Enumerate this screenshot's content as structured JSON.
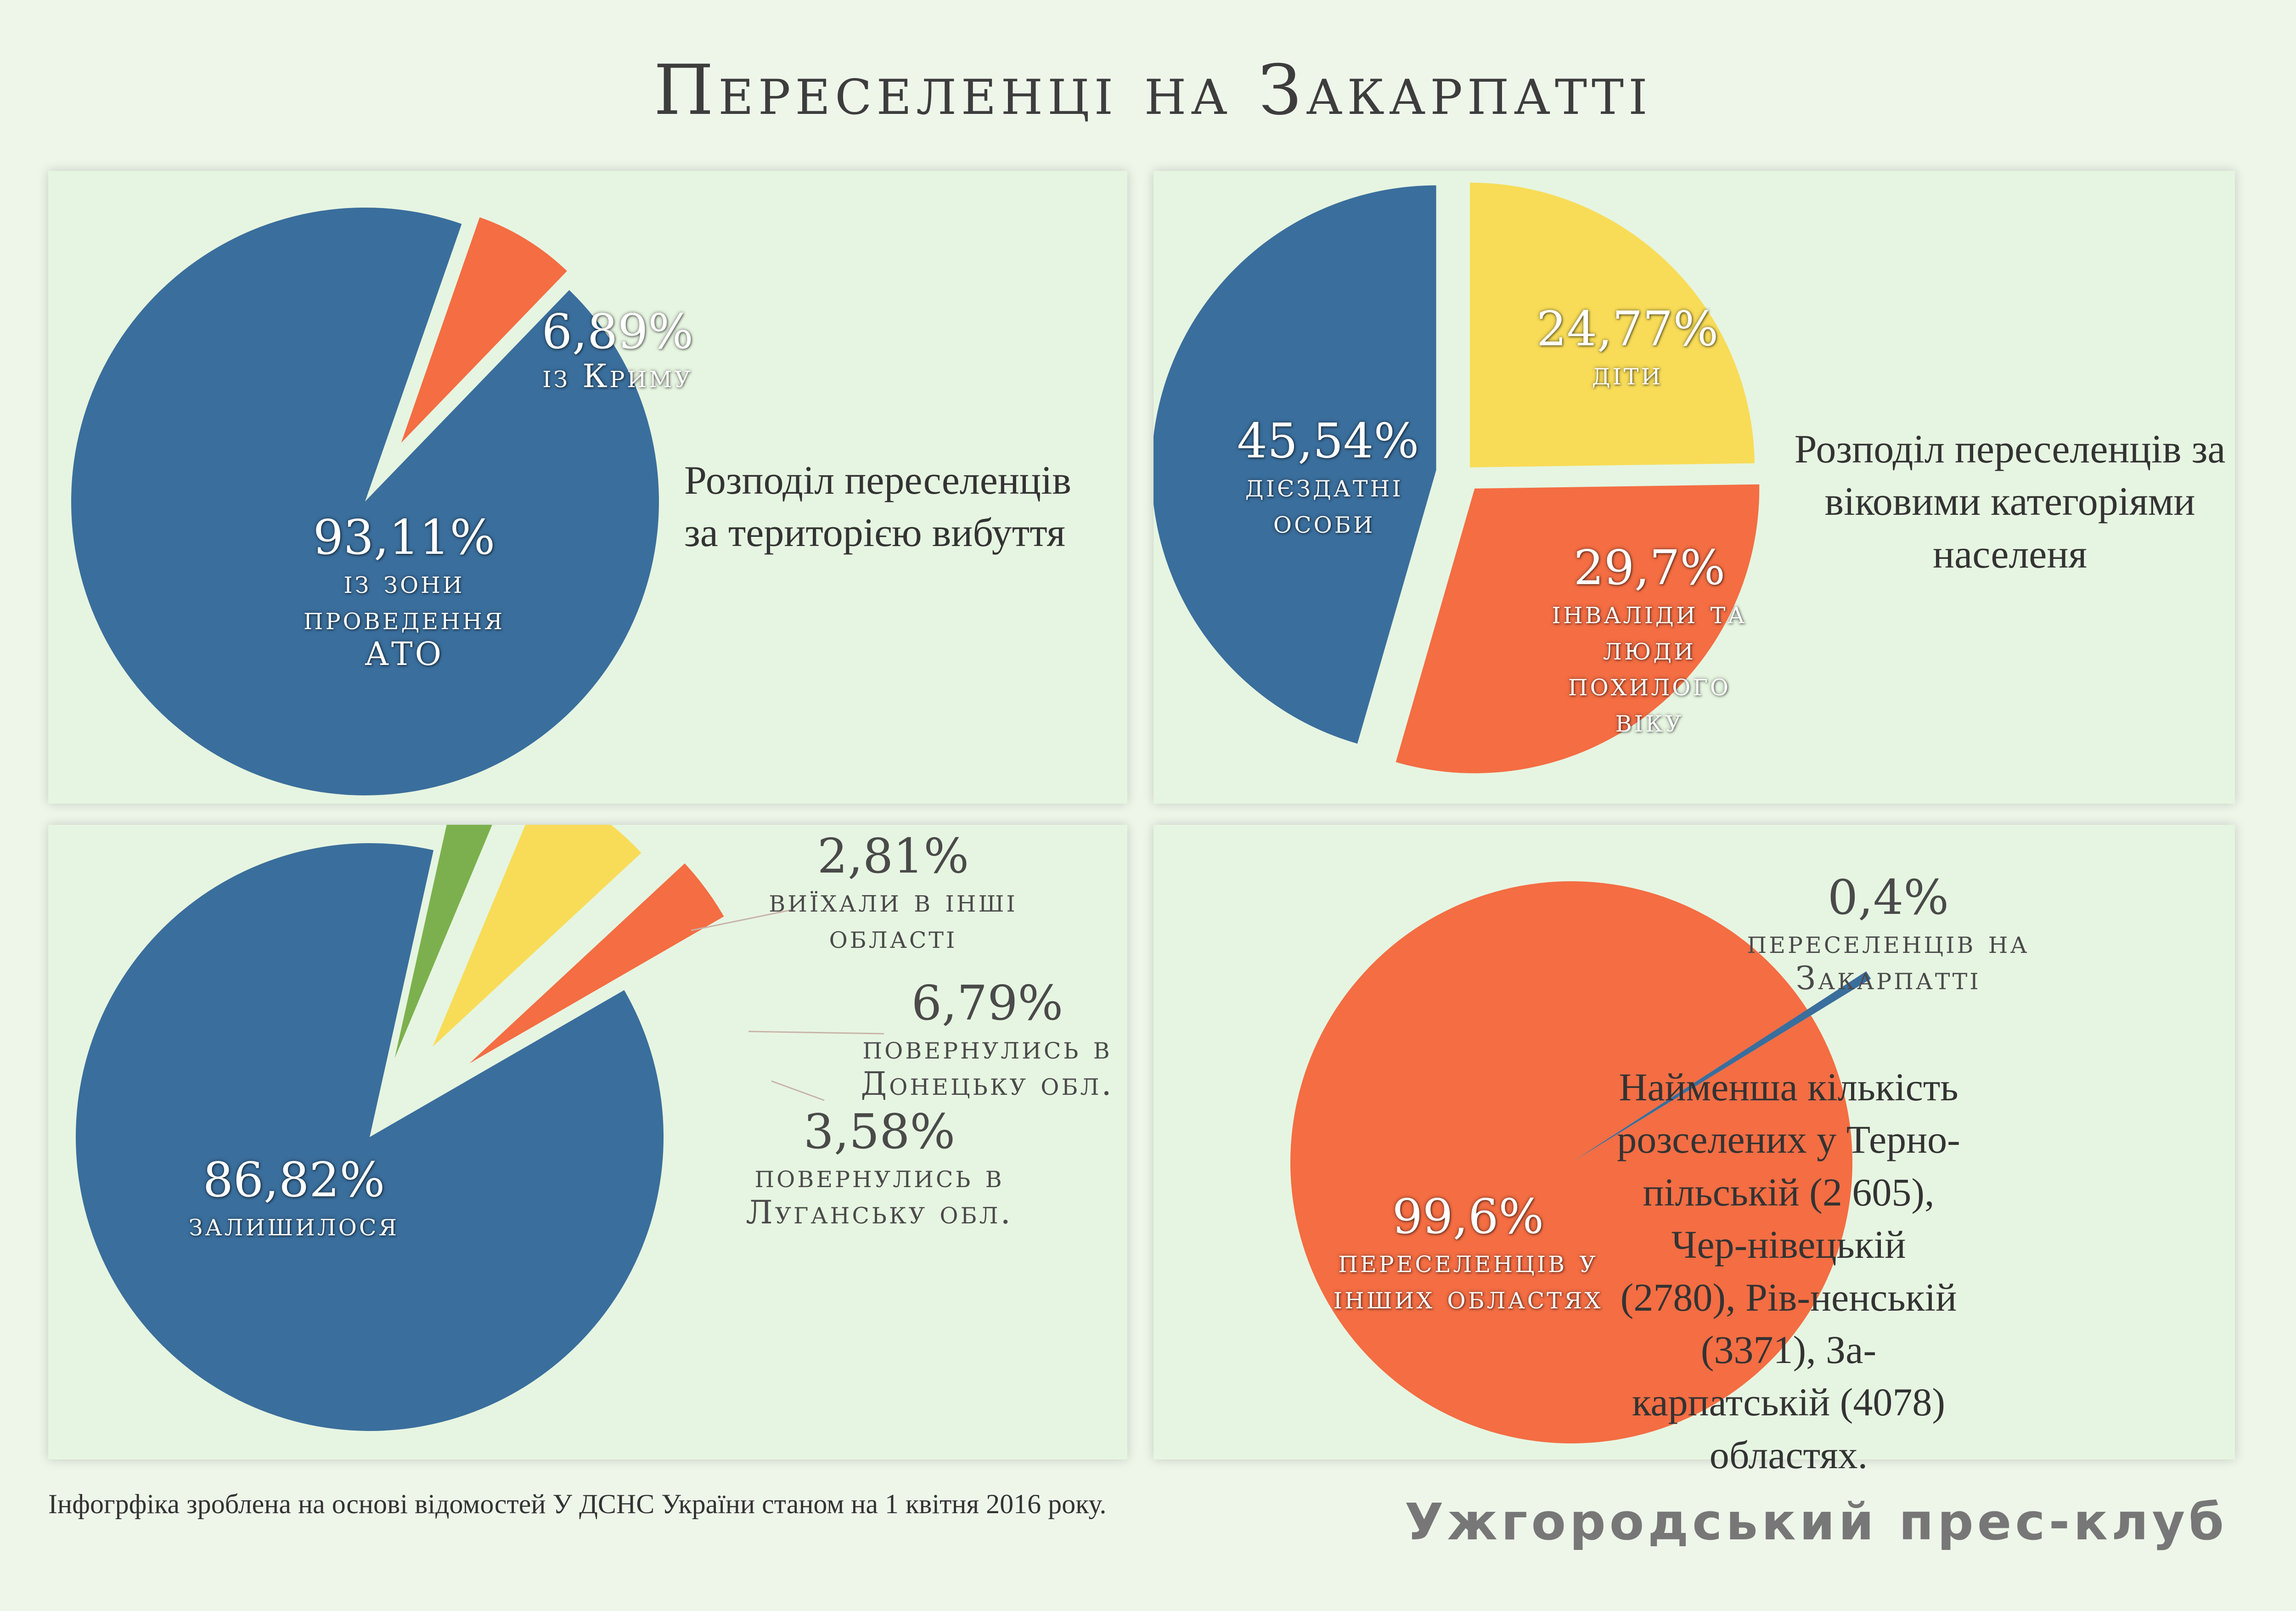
{
  "title": "Переселенці на Закарпатті",
  "colors": {
    "blue": "#3a6e9c",
    "orange": "#f46d43",
    "yellow": "#f8dc58",
    "green": "#7cb04e",
    "background": "#eef6ea",
    "panel": "#e6f5e1"
  },
  "chart_data": [
    {
      "type": "pie",
      "description": "Розподіл переселенців за територією вибуття",
      "slices": [
        {
          "value": 93.11,
          "label_value": "93,11%",
          "label": "із зони проведення АТО",
          "color": "#3a6e9c"
        },
        {
          "value": 6.89,
          "label_value": "6,89%",
          "label": "із Криму",
          "color": "#f46d43"
        }
      ]
    },
    {
      "type": "pie",
      "description": "Розподіл переселенців за віковими категоріями населеня",
      "slices": [
        {
          "value": 24.77,
          "label_value": "24,77%",
          "label": "діти",
          "color": "#f8dc58"
        },
        {
          "value": 29.7,
          "label_value": "29,7%",
          "label": "інваліди та люди похилого віку",
          "color": "#f46d43"
        },
        {
          "value": 45.54,
          "label_value": "45,54%",
          "label": "дієздатні особи",
          "color": "#3a6e9c"
        }
      ]
    },
    {
      "type": "pie",
      "slices": [
        {
          "value": 86.82,
          "label_value": "86,82%",
          "label": "залишилося",
          "color": "#3a6e9c"
        },
        {
          "value": 2.81,
          "label_value": "2,81%",
          "label": "виїхали в інші області",
          "color": "#7cb04e"
        },
        {
          "value": 6.79,
          "label_value": "6,79%",
          "label": "повернулись в Донецьку обл.",
          "color": "#f8dc58"
        },
        {
          "value": 3.58,
          "label_value": "3,58%",
          "label": "повернулись в Луганську обл.",
          "color": "#f46d43"
        }
      ]
    },
    {
      "type": "pie",
      "slices": [
        {
          "value": 99.6,
          "label_value": "99,6%",
          "label": "переселенців у інших областях",
          "color": "#f46d43"
        },
        {
          "value": 0.4,
          "label_value": "0,4%",
          "label": "переселенців на Закарпатті",
          "color": "#3a6e9c"
        }
      ],
      "note": "Найменша кількість розселених у Терно-пільській (2 605), Чер-нівецькій (2780), Рів-ненській (3371), За-карпатській (4078) областях."
    }
  ],
  "footer": {
    "source": "Інфогрфіка зроблена на основі відомостей У ДСНС України станом на 1 квітня 2016 року.",
    "brand": "Ужгородський прес-клуб"
  }
}
